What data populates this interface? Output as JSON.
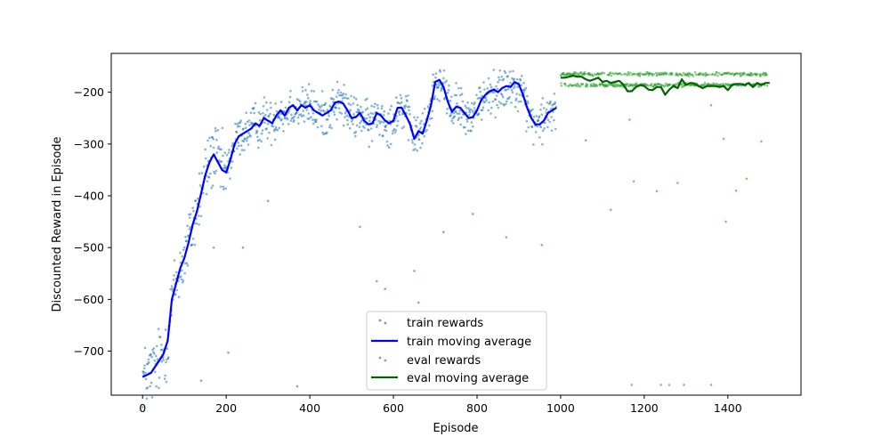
{
  "chart_data": {
    "type": "line",
    "title": "",
    "xlabel": "Episode",
    "ylabel": "Discounted Reward in Episode",
    "xlim": [
      -75,
      1575
    ],
    "ylim": [
      -785,
      -125
    ],
    "xticks": [
      0,
      200,
      400,
      600,
      800,
      1000,
      1200,
      1400
    ],
    "yticks": [
      -700,
      -600,
      -500,
      -400,
      -300,
      -200
    ],
    "xtick_labels": [
      "0",
      "200",
      "400",
      "600",
      "800",
      "1000",
      "1200",
      "1400"
    ],
    "ytick_labels": [
      "−700",
      "−600",
      "−500",
      "−400",
      "−300",
      "−200"
    ],
    "grid": false,
    "legend_position": "lower-center",
    "series": [
      {
        "name": "train rewards",
        "kind": "scatter",
        "color": "#1f77b4",
        "x_range": [
          0,
          990
        ],
        "points_count": 990,
        "outliers": [
          [
            140,
            -757
          ],
          [
            205,
            -703
          ],
          [
            370,
            -768
          ],
          [
            520,
            -460
          ],
          [
            560,
            -565
          ],
          [
            580,
            -580
          ],
          [
            650,
            -545
          ],
          [
            660,
            -606
          ],
          [
            720,
            -470
          ],
          [
            790,
            -435
          ],
          [
            870,
            -480
          ],
          [
            955,
            -495
          ],
          [
            170,
            -500
          ],
          [
            240,
            -500
          ],
          [
            300,
            -410
          ]
        ]
      },
      {
        "name": "train moving average",
        "kind": "line",
        "color": "#0000ff",
        "x": [
          0,
          20,
          40,
          50,
          60,
          65,
          70,
          80,
          90,
          100,
          110,
          120,
          130,
          140,
          150,
          160,
          170,
          180,
          190,
          200,
          210,
          220,
          230,
          240,
          250,
          260,
          270,
          280,
          290,
          300,
          310,
          320,
          330,
          340,
          350,
          360,
          370,
          380,
          390,
          400,
          410,
          420,
          430,
          440,
          450,
          460,
          470,
          480,
          490,
          500,
          510,
          520,
          530,
          540,
          550,
          560,
          570,
          580,
          590,
          600,
          610,
          620,
          630,
          640,
          650,
          660,
          670,
          680,
          690,
          700,
          710,
          720,
          730,
          740,
          750,
          760,
          770,
          780,
          790,
          800,
          810,
          820,
          830,
          840,
          850,
          860,
          870,
          880,
          890,
          900,
          910,
          920,
          930,
          940,
          950,
          960,
          970,
          980,
          990
        ],
        "y": [
          -750,
          -742,
          -718,
          -705,
          -680,
          -640,
          -600,
          -570,
          -540,
          -520,
          -490,
          -455,
          -430,
          -395,
          -360,
          -335,
          -320,
          -335,
          -350,
          -355,
          -330,
          -300,
          -285,
          -280,
          -275,
          -270,
          -260,
          -265,
          -250,
          -255,
          -260,
          -245,
          -235,
          -245,
          -230,
          -225,
          -235,
          -225,
          -230,
          -225,
          -235,
          -240,
          -245,
          -240,
          -235,
          -220,
          -218,
          -222,
          -235,
          -250,
          -248,
          -240,
          -255,
          -262,
          -260,
          -240,
          -245,
          -255,
          -260,
          -255,
          -230,
          -230,
          -245,
          -262,
          -290,
          -275,
          -280,
          -255,
          -225,
          -180,
          -176,
          -190,
          -218,
          -238,
          -228,
          -230,
          -240,
          -250,
          -248,
          -235,
          -215,
          -205,
          -198,
          -195,
          -200,
          -192,
          -188,
          -190,
          -180,
          -185,
          -205,
          -230,
          -250,
          -262,
          -262,
          -255,
          -240,
          -235,
          -230
        ]
      },
      {
        "name": "eval rewards",
        "kind": "scatter",
        "color": "#2ca02c",
        "x_range": [
          1000,
          1495
        ],
        "points_count": 495,
        "outliers": [
          [
            1120,
            -427
          ],
          [
            1165,
            -253
          ],
          [
            1175,
            -372
          ],
          [
            1230,
            -391
          ],
          [
            1280,
            -375
          ],
          [
            1360,
            -225
          ],
          [
            1390,
            -290
          ],
          [
            1395,
            -450
          ],
          [
            1420,
            -390
          ],
          [
            1445,
            -367
          ],
          [
            1480,
            -295
          ],
          [
            1170,
            -765
          ],
          [
            1240,
            -765
          ],
          [
            1260,
            -765
          ],
          [
            1295,
            -765
          ],
          [
            1360,
            -765
          ],
          [
            1060,
            -293
          ]
        ]
      },
      {
        "name": "eval moving average",
        "kind": "line",
        "color": "#006400",
        "x": [
          1000,
          1010,
          1020,
          1030,
          1040,
          1050,
          1060,
          1070,
          1080,
          1090,
          1100,
          1110,
          1120,
          1130,
          1140,
          1150,
          1160,
          1170,
          1180,
          1190,
          1200,
          1210,
          1220,
          1230,
          1240,
          1250,
          1260,
          1270,
          1280,
          1290,
          1300,
          1310,
          1320,
          1330,
          1340,
          1350,
          1360,
          1370,
          1380,
          1390,
          1400,
          1410,
          1420,
          1430,
          1440,
          1450,
          1460,
          1470,
          1480,
          1490,
          1500
        ],
        "y": [
          -172,
          -172,
          -170,
          -168,
          -170,
          -170,
          -175,
          -178,
          -175,
          -172,
          -180,
          -178,
          -182,
          -180,
          -178,
          -185,
          -198,
          -198,
          -190,
          -186,
          -188,
          -195,
          -196,
          -190,
          -190,
          -205,
          -195,
          -188,
          -192,
          -175,
          -186,
          -182,
          -183,
          -188,
          -192,
          -188,
          -188,
          -188,
          -190,
          -188,
          -196,
          -186,
          -184,
          -184,
          -186,
          -182,
          -190,
          -182,
          -186,
          -182,
          -182
        ]
      }
    ]
  }
}
